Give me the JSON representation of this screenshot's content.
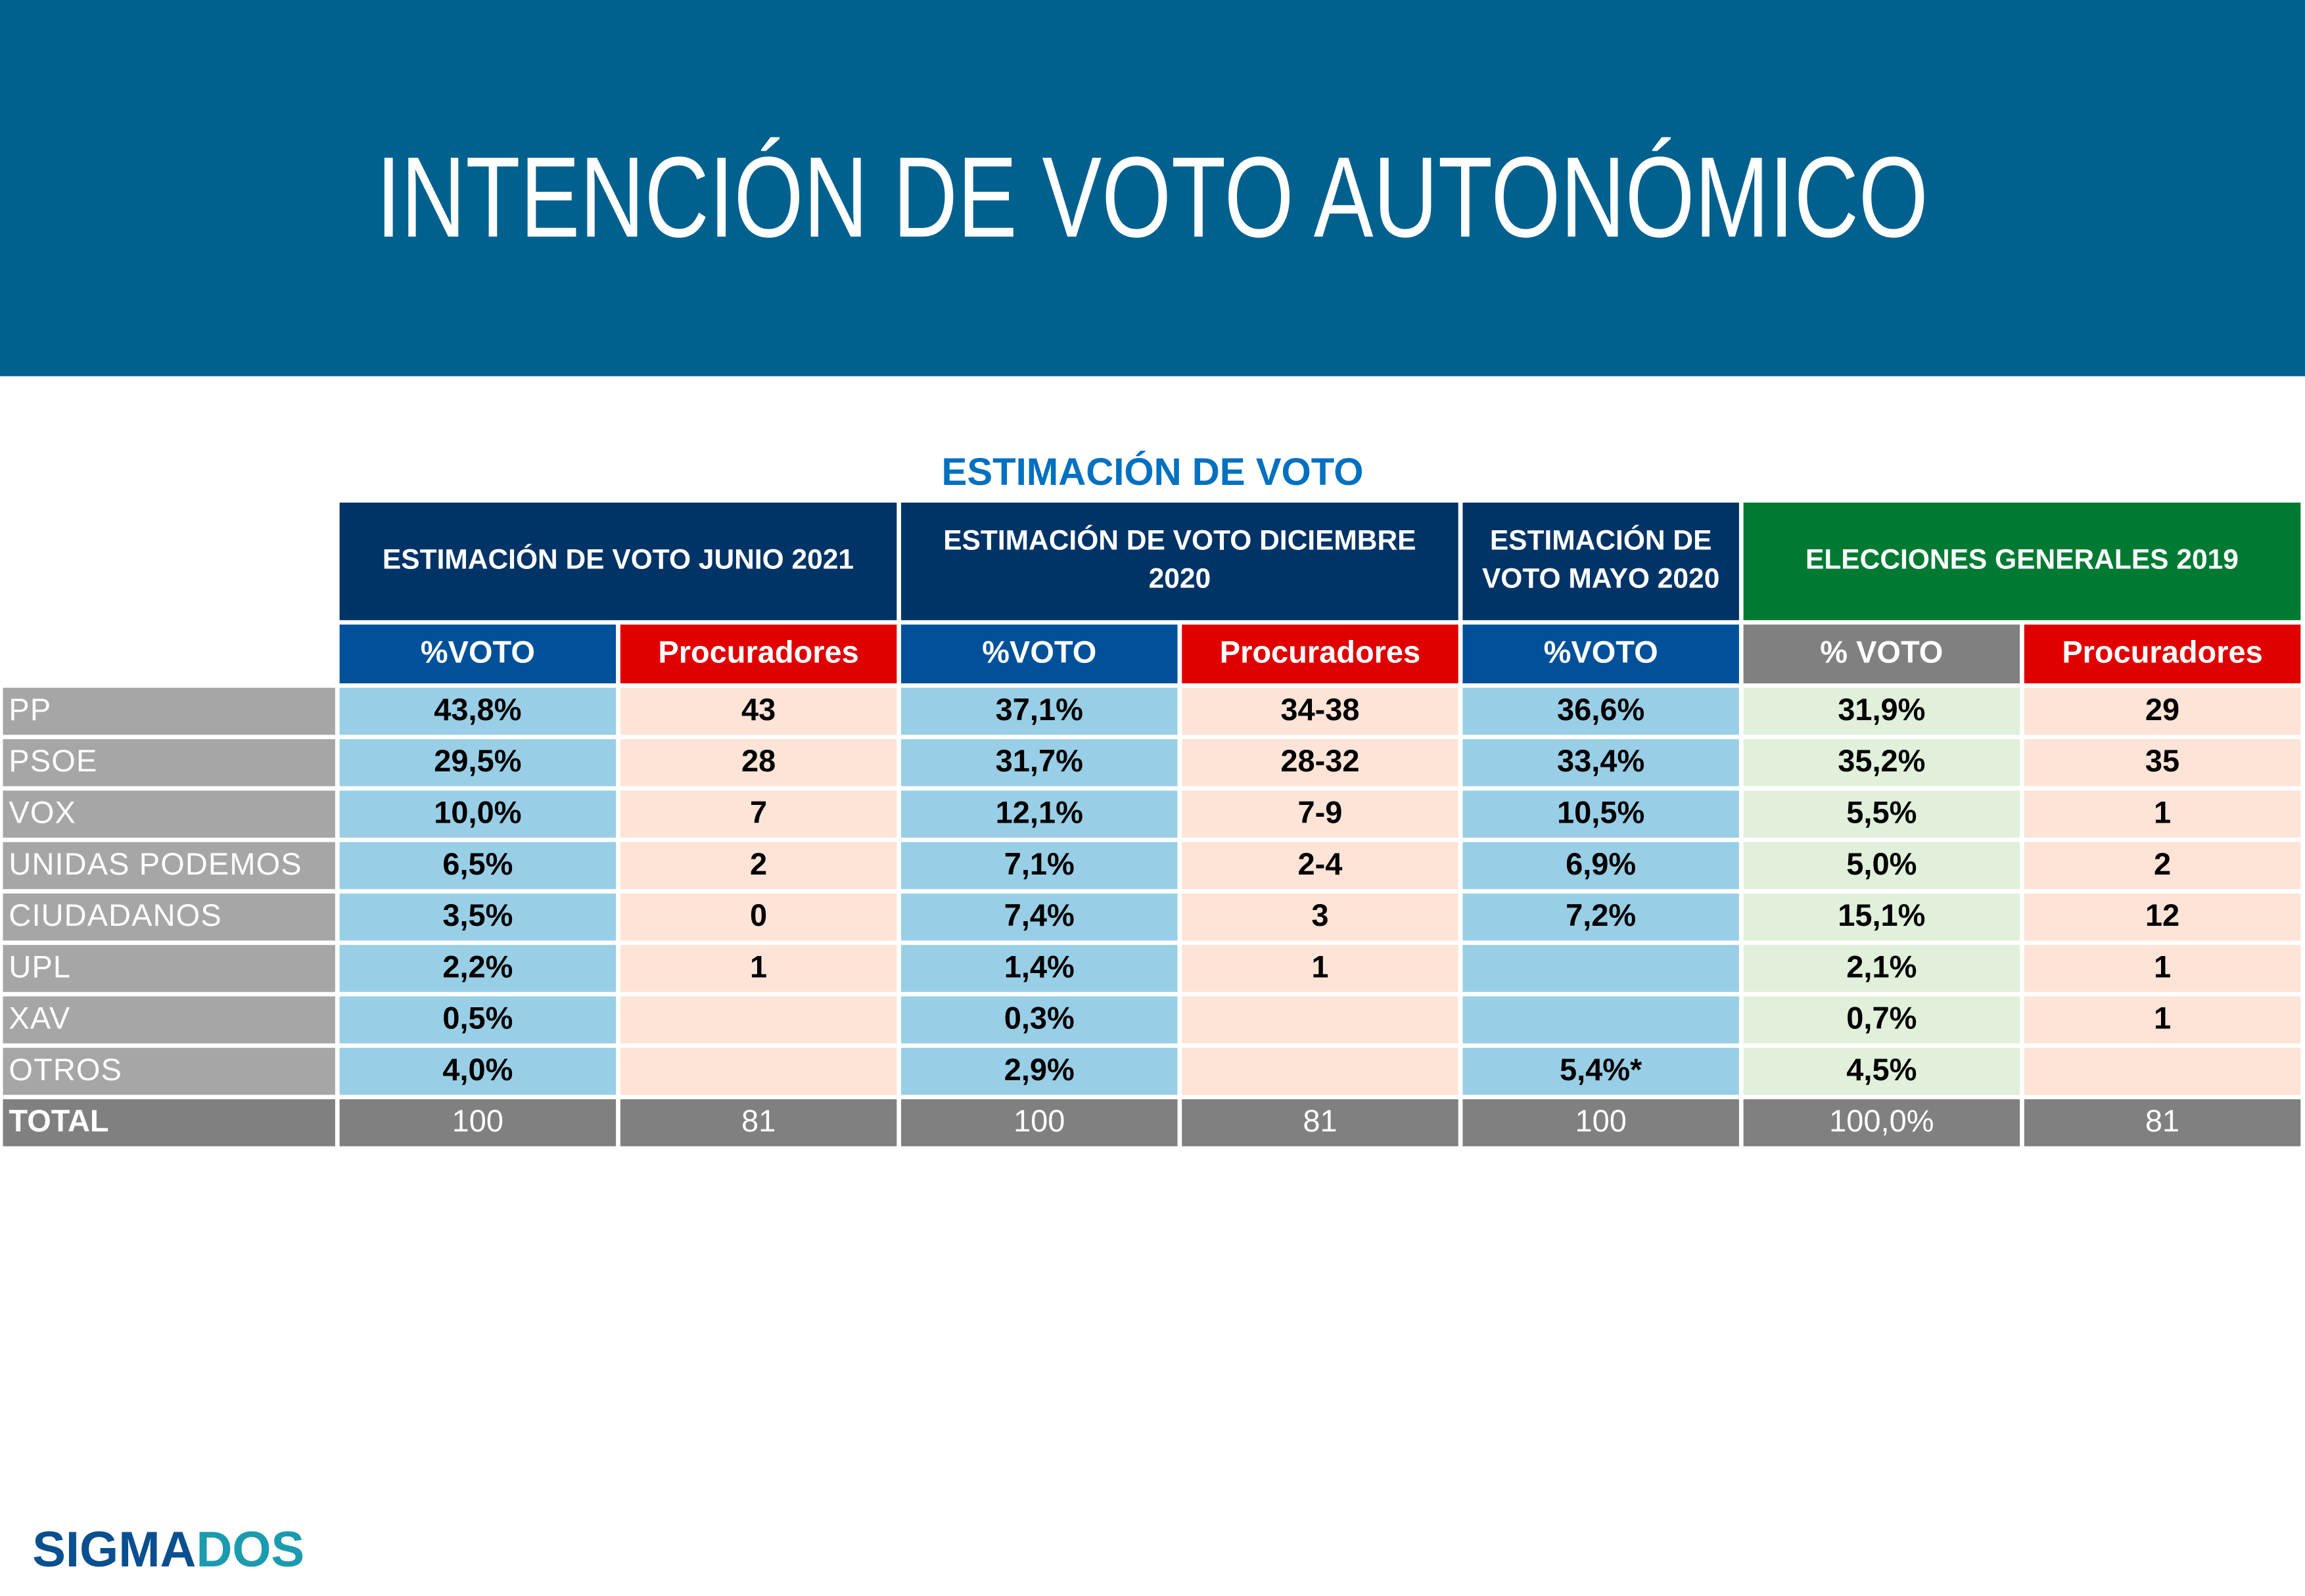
{
  "header": {
    "title": "INTENCIÓN DE VOTO AUTONÓMICO"
  },
  "subtitle": "ESTIMACIÓN DE VOTO",
  "table": {
    "groups": [
      "ESTIMACIÓN DE VOTO JUNIO 2021",
      "ESTIMACIÓN DE VOTO DICIEMBRE 2020",
      "ESTIMACIÓN DE VOTO MAYO 2020",
      "ELECCIONES GENERALES 2019"
    ],
    "subheaders": [
      "%VOTO",
      "Procuradores",
      "%VOTO",
      "Procuradores",
      "%VOTO",
      "% VOTO",
      "Procuradores"
    ],
    "rows": [
      {
        "party": "PP",
        "values": [
          "43,8%",
          "43",
          "37,1%",
          "34-38",
          "36,6%",
          "31,9%",
          "29"
        ]
      },
      {
        "party": "PSOE",
        "values": [
          "29,5%",
          "28",
          "31,7%",
          "28-32",
          "33,4%",
          "35,2%",
          "35"
        ]
      },
      {
        "party": "VOX",
        "values": [
          "10,0%",
          "7",
          "12,1%",
          "7-9",
          "10,5%",
          "5,5%",
          "1"
        ]
      },
      {
        "party": "UNIDAS PODEMOS",
        "values": [
          "6,5%",
          "2",
          "7,1%",
          "2-4",
          "6,9%",
          "5,0%",
          "2"
        ]
      },
      {
        "party": "CIUDADANOS",
        "values": [
          "3,5%",
          "0",
          "7,4%",
          "3",
          "7,2%",
          "15,1%",
          "12"
        ]
      },
      {
        "party": "UPL",
        "values": [
          "2,2%",
          "1",
          "1,4%",
          "1",
          "",
          "2,1%",
          "1"
        ]
      },
      {
        "party": "XAV",
        "values": [
          "0,5%",
          "",
          "0,3%",
          "",
          "",
          "0,7%",
          "1"
        ]
      },
      {
        "party": "OTROS",
        "values": [
          "4,0%",
          "",
          "2,9%",
          "",
          "5,4%*",
          "4,5%",
          ""
        ]
      }
    ],
    "total": {
      "label": "TOTAL",
      "values": [
        "100",
        "81",
        "100",
        "81",
        "100",
        "100,0%",
        "81"
      ]
    }
  },
  "logo": {
    "part1": "SIGMA",
    "part2": "DOS"
  },
  "colors": {
    "band": "#00618E",
    "navy": "#003366",
    "blue": "#005199",
    "red": "#E00000",
    "green": "#007A33"
  }
}
